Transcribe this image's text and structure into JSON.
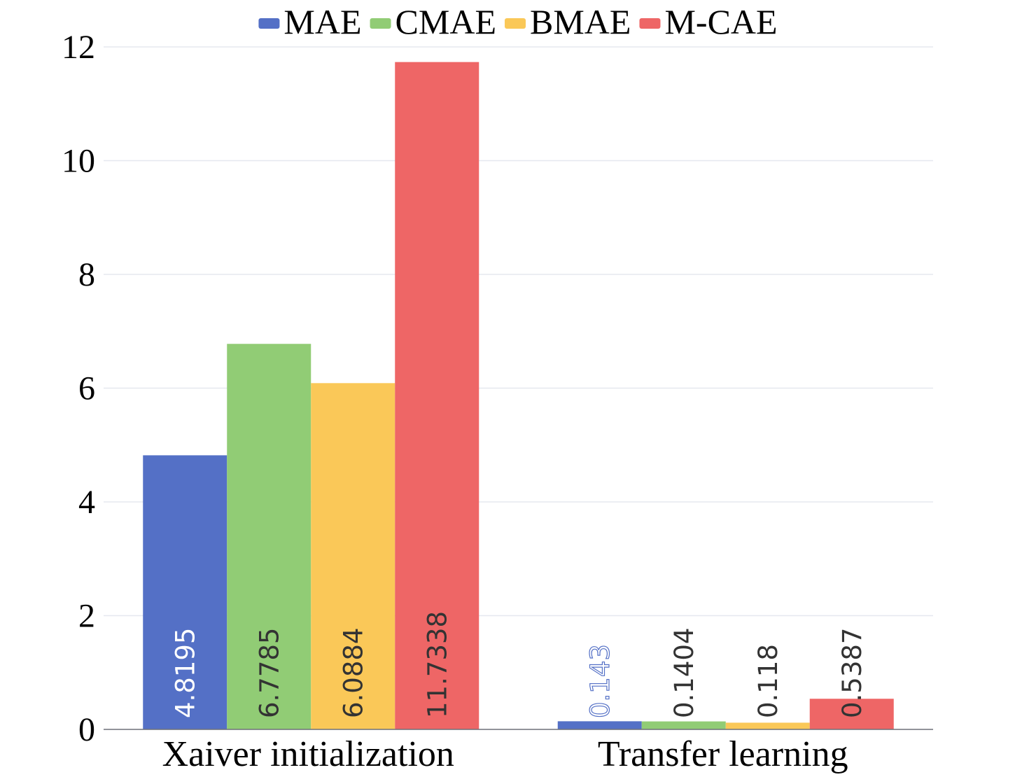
{
  "chart_data": {
    "type": "bar",
    "categories": [
      "Xaiver initialization",
      "Transfer learning"
    ],
    "series": [
      {
        "name": "MAE",
        "color": "#5470c6",
        "values": [
          4.8195,
          0.143
        ],
        "labels": [
          "4.8195",
          "0.143"
        ]
      },
      {
        "name": "CMAE",
        "color": "#91cc75",
        "values": [
          6.7785,
          0.1404
        ],
        "labels": [
          "6.7785",
          "0.1404"
        ]
      },
      {
        "name": "BMAE",
        "color": "#fac858",
        "values": [
          6.0884,
          0.118
        ],
        "labels": [
          "6.0884",
          "0.118"
        ]
      },
      {
        "name": "M-CAE",
        "color": "#ee6666",
        "values": [
          11.7338,
          0.5387
        ],
        "labels": [
          "11.7338",
          "0.5387"
        ]
      }
    ],
    "yticks": [
      "0",
      "2",
      "4",
      "6",
      "8",
      "10",
      "12"
    ],
    "ylim": [
      0,
      12
    ],
    "grid": true,
    "legend_position": "top",
    "title": "",
    "xlabel": "",
    "ylabel": ""
  }
}
